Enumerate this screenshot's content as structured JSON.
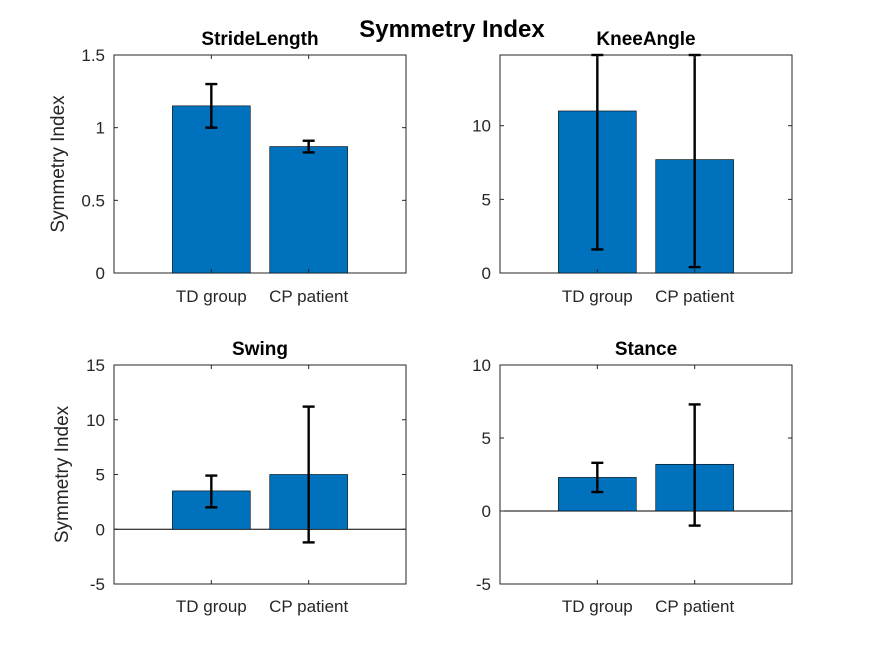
{
  "title": "Symmetry Index",
  "bar_color": "#0072BD",
  "chart_data": [
    {
      "type": "bar",
      "title": "StrideLength",
      "ylabel": "Symmetry Index",
      "categories": [
        "TD group",
        "CP patient"
      ],
      "values": [
        1.15,
        0.87
      ],
      "error_low": [
        1.0,
        0.83
      ],
      "error_high": [
        1.3,
        0.91
      ],
      "ylim": [
        0,
        1.5
      ],
      "yticks": [
        0,
        0.5,
        1,
        1.5
      ],
      "ytick_labels": [
        "0",
        "0.5",
        "1",
        "1.5"
      ]
    },
    {
      "type": "bar",
      "title": "KneeAngle",
      "ylabel": "",
      "categories": [
        "TD group",
        "CP patient"
      ],
      "values": [
        11.0,
        7.7
      ],
      "error_low": [
        1.6,
        0.4
      ],
      "error_high": [
        14.8,
        14.8
      ],
      "ylim": [
        0,
        14.8
      ],
      "yticks": [
        0,
        5,
        10
      ],
      "ytick_labels": [
        "0",
        "5",
        "10"
      ]
    },
    {
      "type": "bar",
      "title": "Swing",
      "ylabel": "Symmetry Index",
      "categories": [
        "TD group",
        "CP patient"
      ],
      "values": [
        3.5,
        5.0
      ],
      "error_low": [
        2.0,
        -1.2
      ],
      "error_high": [
        4.9,
        11.2
      ],
      "ylim": [
        -5,
        15
      ],
      "yticks": [
        -5,
        0,
        5,
        10,
        15
      ],
      "ytick_labels": [
        "-5",
        "0",
        "5",
        "10",
        "15"
      ]
    },
    {
      "type": "bar",
      "title": "Stance",
      "ylabel": "",
      "categories": [
        "TD group",
        "CP patient"
      ],
      "values": [
        2.3,
        3.2
      ],
      "error_low": [
        1.3,
        -1.0
      ],
      "error_high": [
        3.3,
        7.3
      ],
      "ylim": [
        -5,
        10
      ],
      "yticks": [
        -5,
        0,
        5,
        10
      ],
      "ytick_labels": [
        "-5",
        "0",
        "5",
        "10"
      ]
    }
  ]
}
